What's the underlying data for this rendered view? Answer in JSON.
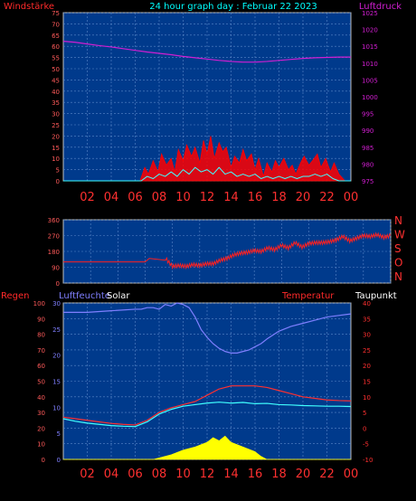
{
  "header": {
    "left_label": "Windstärke",
    "title": "24 hour graph day : Februar 22 2023",
    "right_label": "Luftdruck"
  },
  "colors": {
    "background": "#000000",
    "plot_bg": "#003a8c",
    "grid": "#5a86c8",
    "frame": "#c0c0c0",
    "left_axis_text": "#ff2a2a",
    "pressure": "#d21ed2",
    "wind": "#ff0000",
    "wind_avg": "#40ffff",
    "direction": "#ff2020",
    "humidity": "#7f7fff",
    "temperature": "#ff3030",
    "dewpoint": "#40ffff",
    "solar": "#ffff00",
    "x_tick_text": "#ff3030",
    "title_text": "#00ffff",
    "purple_label": "#cc44cc",
    "white_text": "#ffffff"
  },
  "x_ticks": [
    "02",
    "04",
    "06",
    "08",
    "10",
    "12",
    "14",
    "16",
    "18",
    "20",
    "22",
    "00"
  ],
  "chart_data": [
    {
      "type": "line",
      "name": "wind-pressure",
      "x_range": [
        0,
        24
      ],
      "left_axis": {
        "label": "Windstärke",
        "range": [
          0,
          75
        ],
        "ticks": [
          0,
          5,
          10,
          15,
          20,
          25,
          30,
          35,
          40,
          45,
          50,
          55,
          60,
          65,
          70,
          75
        ]
      },
      "right_axis": {
        "label": "Luftdruck",
        "range": [
          975,
          1025
        ],
        "ticks": [
          975,
          980,
          985,
          990,
          995,
          1000,
          1005,
          1010,
          1015,
          1020,
          1025
        ]
      },
      "series": [
        {
          "key": "pressure",
          "axis": "right",
          "x": [
            0,
            1,
            2,
            3,
            4,
            5,
            6,
            7,
            8,
            9,
            10,
            11,
            12,
            13,
            14,
            15,
            16,
            17,
            18,
            19,
            20,
            21,
            22,
            23,
            24
          ],
          "y": [
            1016.5,
            1016.2,
            1015.7,
            1015.2,
            1014.8,
            1014.3,
            1013.8,
            1013.3,
            1012.9,
            1012.5,
            1012.0,
            1011.6,
            1011.2,
            1010.8,
            1010.5,
            1010.3,
            1010.3,
            1010.5,
            1010.8,
            1011.1,
            1011.4,
            1011.6,
            1011.7,
            1011.8,
            1011.8
          ]
        },
        {
          "key": "wind",
          "axis": "left",
          "x": [
            0,
            6.4,
            6.8,
            7.1,
            7.5,
            7.9,
            8.2,
            8.6,
            9.0,
            9.3,
            9.6,
            10.0,
            10.3,
            10.7,
            11.0,
            11.4,
            11.7,
            12.0,
            12.3,
            12.6,
            13.0,
            13.3,
            13.6,
            14.0,
            14.3,
            14.7,
            15.0,
            15.3,
            15.7,
            16.0,
            16.3,
            16.7,
            17.0,
            17.4,
            17.7,
            18.0,
            18.4,
            18.8,
            19.1,
            19.4,
            19.8,
            20.1,
            20.5,
            20.8,
            21.2,
            21.5,
            21.9,
            22.3,
            22.6,
            23.0,
            23.5,
            24
          ],
          "y": [
            0,
            0,
            6,
            3,
            9,
            4,
            12,
            7,
            10,
            4,
            14,
            9,
            16,
            11,
            15,
            8,
            18,
            12,
            20,
            10,
            17,
            13,
            15,
            6,
            11,
            8,
            14,
            9,
            12,
            5,
            10,
            2,
            8,
            4,
            9,
            6,
            10,
            5,
            7,
            3,
            8,
            11,
            7,
            9,
            12,
            6,
            10,
            4,
            8,
            3,
            0,
            0
          ]
        },
        {
          "key": "wind_avg",
          "axis": "left",
          "x": [
            0,
            6.5,
            7.0,
            7.5,
            8.0,
            8.5,
            9.0,
            9.5,
            10.0,
            10.5,
            11.0,
            11.5,
            12.0,
            12.5,
            13.0,
            13.5,
            14.0,
            14.5,
            15.0,
            15.5,
            16.0,
            16.5,
            17.0,
            17.5,
            18.0,
            18.5,
            19.0,
            19.5,
            20.0,
            20.5,
            21.0,
            21.5,
            22.0,
            22.5,
            23.0,
            24
          ],
          "y": [
            0,
            0,
            2,
            1,
            3,
            2,
            4,
            2,
            5,
            3,
            6,
            4,
            5,
            3,
            6,
            3,
            4,
            2,
            3,
            2,
            3,
            1,
            2,
            1,
            2,
            1,
            2,
            1,
            2,
            2,
            3,
            2,
            3,
            1,
            0,
            0
          ]
        }
      ]
    },
    {
      "type": "line",
      "name": "wind-direction",
      "x_range": [
        0,
        24
      ],
      "left_axis": {
        "range": [
          0,
          360
        ],
        "ticks": [
          0,
          90,
          180,
          270,
          360
        ]
      },
      "right_axis_labels": [
        "N",
        "W",
        "S",
        "O",
        "N"
      ],
      "series": [
        {
          "key": "direction",
          "x": [
            0,
            2,
            4,
            6,
            6.3,
            7.5,
            8.0,
            8.5,
            9.0,
            9.5,
            10.0,
            10.5,
            11.0,
            11.5,
            12.0,
            12.5,
            13.0,
            13.5,
            14.0,
            14.5,
            15.0,
            15.5,
            16.0,
            16.5,
            17.0,
            17.5,
            18.0,
            18.5,
            19.0,
            19.5,
            20.0,
            20.5,
            21.0,
            21.5,
            22.0,
            22.5,
            23.0,
            23.5,
            24
          ],
          "y": [
            120,
            120,
            120,
            120,
            140,
            140,
            95,
            100,
            95,
            105,
            100,
            110,
            110,
            130,
            140,
            160,
            170,
            175,
            185,
            180,
            200,
            190,
            215,
            200,
            230,
            205,
            225,
            230,
            230,
            235,
            245,
            265,
            240,
            255,
            270,
            265,
            275,
            260,
            270
          ]
        }
      ]
    },
    {
      "type": "line",
      "name": "humidity-temperature-solar",
      "x_range": [
        0,
        24
      ],
      "left_axis": {
        "label": "Regen",
        "range": [
          0,
          100
        ],
        "ticks": [
          0,
          10,
          20,
          30,
          40,
          50,
          60,
          70,
          80,
          90,
          100
        ]
      },
      "left_axis_2": {
        "label": "Luftfeuchte",
        "range": [
          0,
          30
        ],
        "ticks": [
          0,
          5,
          10,
          15,
          20,
          25,
          30
        ]
      },
      "labels": {
        "solar": "Solar",
        "temperature": "Temperatur",
        "dewpoint": "Taupunkt"
      },
      "right_axis": {
        "range": [
          -10,
          40
        ],
        "ticks": [
          -10,
          -5,
          0,
          5,
          10,
          15,
          20,
          25,
          30,
          35,
          40
        ]
      },
      "series": [
        {
          "key": "humidity",
          "axis": "left",
          "x": [
            0,
            2,
            4,
            6,
            6.5,
            7,
            7.5,
            8,
            8.5,
            9,
            9.5,
            10,
            10.5,
            11,
            11.5,
            12,
            12.5,
            13,
            13.5,
            14,
            14.5,
            15,
            15.5,
            16,
            16.5,
            17,
            18,
            19,
            20,
            21,
            22,
            23,
            24
          ],
          "y": [
            94,
            94,
            95,
            96,
            96,
            97,
            97,
            96,
            99,
            98,
            100,
            99,
            97,
            91,
            83,
            78,
            74,
            71,
            69,
            68,
            68,
            69,
            70,
            72,
            74,
            77,
            82,
            85,
            87,
            89,
            91,
            92,
            93
          ]
        },
        {
          "key": "temperature",
          "axis": "right",
          "x": [
            0,
            1,
            2,
            3,
            4,
            5,
            6,
            7,
            8,
            9,
            10,
            11,
            12,
            13,
            14,
            15,
            16,
            17,
            18,
            19,
            20,
            21,
            22,
            23,
            24
          ],
          "y": [
            3.5,
            3.0,
            2.5,
            2.0,
            1.5,
            1.2,
            1.0,
            2.5,
            5.0,
            6.5,
            7.5,
            8.5,
            10.5,
            12.5,
            13.5,
            13.5,
            13.5,
            13.0,
            12.0,
            11.0,
            10.0,
            9.5,
            9.0,
            8.8,
            8.7
          ]
        },
        {
          "key": "dewpoint",
          "axis": "right",
          "x": [
            0,
            1,
            2,
            3,
            4,
            5,
            6,
            7,
            8,
            9,
            10,
            11,
            12,
            13,
            14,
            15,
            16,
            17,
            18,
            19,
            20,
            21,
            22,
            23,
            24
          ],
          "y": [
            3.0,
            2.2,
            1.6,
            1.2,
            0.8,
            0.6,
            0.5,
            2.0,
            4.5,
            6.0,
            7.0,
            7.5,
            8.0,
            8.3,
            8.0,
            8.2,
            7.8,
            7.9,
            7.5,
            7.4,
            7.2,
            7.1,
            7.0,
            7.0,
            6.9
          ]
        },
        {
          "key": "solar",
          "axis": "left",
          "x": [
            0,
            7.5,
            8.0,
            9.0,
            10.0,
            11.0,
            12.0,
            12.5,
            13.0,
            13.5,
            14.0,
            15.0,
            16.0,
            16.5,
            17.0,
            24
          ],
          "y": [
            0,
            0,
            1,
            3,
            6,
            8,
            11,
            14,
            12,
            15,
            11,
            8,
            5,
            2,
            0,
            0
          ]
        }
      ]
    }
  ]
}
